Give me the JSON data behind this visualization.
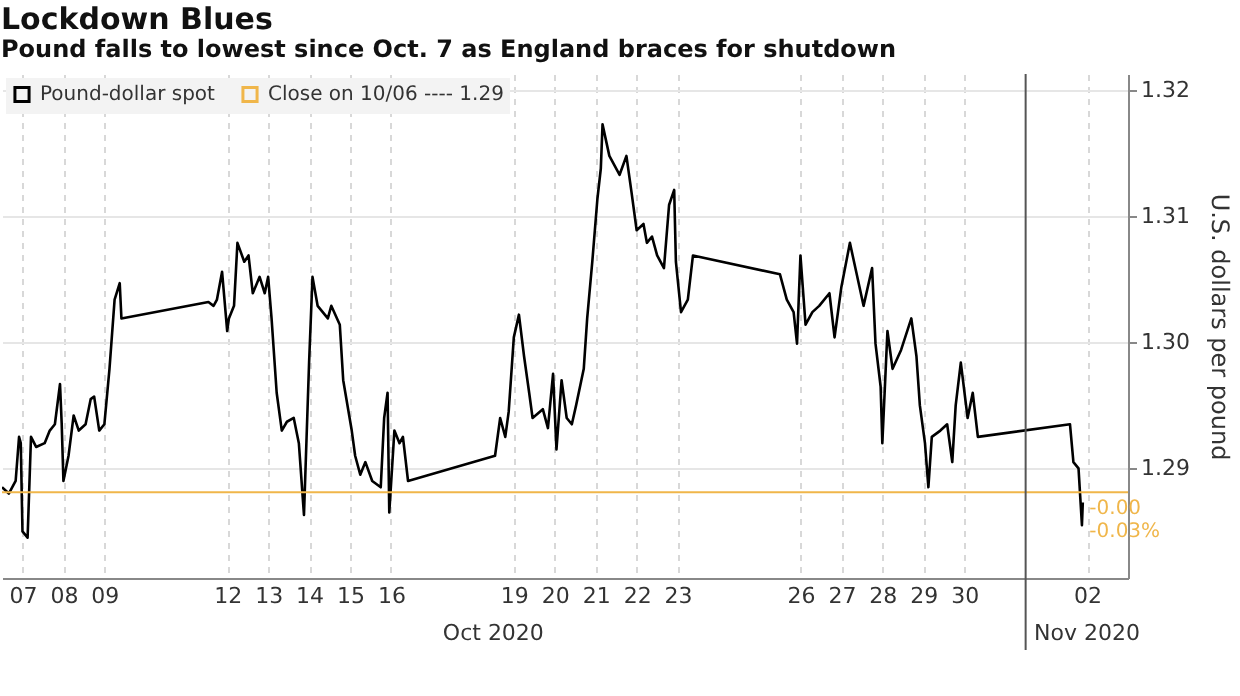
{
  "chart_data": {
    "type": "line",
    "title": "Lockdown Blues",
    "subtitle": "Pound falls to lowest since Oct. 7 as England braces for shutdown",
    "ylabel": "U.S. dollars per pound",
    "x": [
      "2020-10-07T00:00",
      "2020-10-07T04:00",
      "2020-10-07T08:00",
      "2020-10-07T10:00",
      "2020-10-07T11:00",
      "2020-10-07T12:00",
      "2020-10-07T15:00",
      "2020-10-07T17:00",
      "2020-10-07T20:00",
      "2020-10-08T01:00",
      "2020-10-08T04:00",
      "2020-10-08T07:00",
      "2020-10-08T10:00",
      "2020-10-08T11:00",
      "2020-10-08T12:00",
      "2020-10-08T15:00",
      "2020-10-08T18:00",
      "2020-10-08T21:00",
      "2020-10-09T01:00",
      "2020-10-09T04:00",
      "2020-10-09T06:00",
      "2020-10-09T09:00",
      "2020-10-09T12:00",
      "2020-10-09T15:00",
      "2020-10-09T18:00",
      "2020-10-09T21:00",
      "2020-10-09T22:00",
      "2020-10-12T01:00",
      "2020-10-12T04:00",
      "2020-10-12T06:00",
      "2020-10-12T09:00",
      "2020-10-12T12:00",
      "2020-10-12T13:00",
      "2020-10-12T16:00",
      "2020-10-12T18:00",
      "2020-10-12T22:00",
      "2020-10-13T00:30",
      "2020-10-13T03:00",
      "2020-10-13T07:00",
      "2020-10-13T10:00",
      "2020-10-13T12:00",
      "2020-10-13T14:00",
      "2020-10-13T17:00",
      "2020-10-13T20:00",
      "2020-10-13T23:00",
      "2020-10-14T03:00",
      "2020-10-14T06:00",
      "2020-10-14T09:00",
      "2020-10-14T12:00",
      "2020-10-14T14:00",
      "2020-10-14T17:00",
      "2020-10-14T23:00",
      "2020-10-15T01:00",
      "2020-10-15T06:00",
      "2020-10-15T08:00",
      "2020-10-15T13:00",
      "2020-10-15T15:00",
      "2020-10-15T18:00",
      "2020-10-15T21:00",
      "2020-10-16T01:00",
      "2020-10-16T06:00",
      "2020-10-16T08:00",
      "2020-10-16T10:00",
      "2020-10-16T11:00",
      "2020-10-16T14:00",
      "2020-10-16T17:00",
      "2020-10-16T19:00",
      "2020-10-16T22:00",
      "2020-10-19T01:00",
      "2020-10-19T04:00",
      "2020-10-19T07:00",
      "2020-10-19T09:00",
      "2020-10-19T12:00",
      "2020-10-19T15:00",
      "2020-10-19T18:00",
      "2020-10-19T21:00",
      "2020-10-19T23:00",
      "2020-10-20T05:00",
      "2020-10-20T08:00",
      "2020-10-20T11:00",
      "2020-10-20T13:00",
      "2020-10-20T16:00",
      "2020-10-20T19:00",
      "2020-10-20T22:00",
      "2020-10-21T00:30",
      "2020-10-21T05:00",
      "2020-10-21T07:00",
      "2020-10-21T10:00",
      "2020-10-21T13:00",
      "2020-10-21T15:00",
      "2020-10-21T16:00",
      "2020-10-21T20:00",
      "2020-10-22T02:00",
      "2020-10-22T06:00",
      "2020-10-22T09:00",
      "2020-10-22T12:00",
      "2020-10-22T16:00",
      "2020-10-22T18:00",
      "2020-10-22T21:00",
      "2020-10-23T00:00",
      "2020-10-23T04:00",
      "2020-10-23T07:00",
      "2020-10-23T10:00",
      "2020-10-23T11:00",
      "2020-10-23T14:00",
      "2020-10-23T18:00",
      "2020-10-23T21:00",
      "2020-10-26T00:00",
      "2020-10-26T04:00",
      "2020-10-26T08:00",
      "2020-10-26T10:00",
      "2020-10-26T12:00",
      "2020-10-26T15:00",
      "2020-10-26T19:00",
      "2020-10-26T23:00",
      "2020-10-27T05:00",
      "2020-10-27T08:00",
      "2020-10-27T12:00",
      "2020-10-27T17:00",
      "2020-10-27T21:00",
      "2020-10-28T01:00",
      "2020-10-28T06:00",
      "2020-10-28T08:00",
      "2020-10-28T11:00",
      "2020-10-28T12:00",
      "2020-10-28T15:00",
      "2020-10-28T18:00",
      "2020-10-28T23:00",
      "2020-10-29T05:00",
      "2020-10-29T08:00",
      "2020-10-29T10:00",
      "2020-10-29T13:00",
      "2020-10-29T15:00",
      "2020-10-29T17:00",
      "2020-10-29T22:00",
      "2020-10-30T02:00",
      "2020-10-30T05:00",
      "2020-10-30T07:00",
      "2020-10-30T10:00",
      "2020-10-30T14:00",
      "2020-10-30T17:00",
      "2020-10-30T20:00",
      "2020-11-02T02:00",
      "2020-11-02T04:00",
      "2020-11-02T07:00",
      "2020-11-02T09:00",
      "2020-11-02T09:30"
    ],
    "series": [
      {
        "name": "Pound-dollar spot",
        "color": "#000000",
        "values": [
          1.2885,
          1.288,
          1.289,
          1.2925,
          1.292,
          1.285,
          1.2845,
          1.2925,
          1.2917,
          1.292,
          1.293,
          1.2935,
          1.2967,
          1.2935,
          1.289,
          1.291,
          1.2942,
          1.293,
          1.2935,
          1.2955,
          1.2957,
          1.293,
          1.2935,
          1.2979,
          1.3034,
          1.3047,
          1.3019,
          1.3032,
          1.3029,
          1.3034,
          1.3056,
          1.3009,
          1.3019,
          1.3029,
          1.3079,
          1.3064,
          1.3069,
          1.3039,
          1.3052,
          1.3039,
          1.3052,
          1.3019,
          1.296,
          1.293,
          1.2937,
          1.294,
          1.292,
          1.2863,
          1.2984,
          1.3052,
          1.3029,
          1.3019,
          1.3029,
          1.3014,
          1.297,
          1.293,
          1.291,
          1.2895,
          1.2905,
          1.289,
          1.2885,
          1.294,
          1.296,
          1.2865,
          1.293,
          1.292,
          1.2925,
          1.289,
          1.291,
          1.294,
          1.2925,
          1.2945,
          1.3004,
          1.3022,
          1.2989,
          1.296,
          1.294,
          1.2947,
          1.2932,
          1.2975,
          1.2915,
          1.297,
          1.294,
          1.2935,
          1.295,
          1.2979,
          1.3019,
          1.3064,
          1.3114,
          1.3138,
          1.3173,
          1.3148,
          1.3133,
          1.3148,
          1.3119,
          1.3089,
          1.3094,
          1.3079,
          1.3084,
          1.3069,
          1.3059,
          1.3109,
          1.3121,
          1.3064,
          1.3024,
          1.3034,
          1.3069,
          1.3054,
          1.3034,
          1.3024,
          1.2999,
          1.3069,
          1.3014,
          1.3024,
          1.3029,
          1.3039,
          1.3004,
          1.3044,
          1.3079,
          1.3054,
          1.3029,
          1.3059,
          1.2999,
          1.2965,
          1.292,
          1.3009,
          1.2979,
          1.2994,
          1.3019,
          1.2989,
          1.295,
          1.292,
          1.2885,
          1.2925,
          1.293,
          1.2935,
          1.2905,
          1.295,
          1.2984,
          1.294,
          1.296,
          1.2925,
          1.2935,
          1.2905,
          1.29,
          1.2855,
          1.2873
        ]
      }
    ],
    "xlim": [
      "2020-10-07T00:00",
      "2020-11-03T12:00"
    ],
    "xticks": [
      {
        "value": "2020-10-07T12:00",
        "label": "07"
      },
      {
        "value": "2020-10-08T12:00",
        "label": "08"
      },
      {
        "value": "2020-10-09T12:00",
        "label": "09"
      },
      {
        "value": "2020-10-12T12:00",
        "label": "12"
      },
      {
        "value": "2020-10-13T12:00",
        "label": "13"
      },
      {
        "value": "2020-10-14T12:00",
        "label": "14"
      },
      {
        "value": "2020-10-15T12:00",
        "label": "15"
      },
      {
        "value": "2020-10-16T12:00",
        "label": "16"
      },
      {
        "value": "2020-10-19T12:00",
        "label": "19"
      },
      {
        "value": "2020-10-20T12:00",
        "label": "20"
      },
      {
        "value": "2020-10-21T12:00",
        "label": "21"
      },
      {
        "value": "2020-10-22T12:00",
        "label": "22"
      },
      {
        "value": "2020-10-23T12:00",
        "label": "23"
      },
      {
        "value": "2020-10-26T12:00",
        "label": "26"
      },
      {
        "value": "2020-10-27T12:00",
        "label": "27"
      },
      {
        "value": "2020-10-28T12:00",
        "label": "28"
      },
      {
        "value": "2020-10-29T12:00",
        "label": "29"
      },
      {
        "value": "2020-10-30T12:00",
        "label": "30"
      },
      {
        "value": "2020-11-02T12:00",
        "label": "02"
      }
    ],
    "ylim": [
      1.2813,
      1.3213
    ],
    "yticks": [
      {
        "value": 1.29,
        "label": "1.29"
      },
      {
        "value": 1.3,
        "label": "1.30"
      },
      {
        "value": 1.31,
        "label": "1.31"
      },
      {
        "value": 1.32,
        "label": "1.32"
      }
    ],
    "ref_lines": [
      {
        "axis": "y",
        "value": 1.2881,
        "label": "Close on 10/06 ---- 1.29",
        "color": "#f0b64a"
      },
      {
        "axis": "x",
        "value": "2020-11-01T00:00",
        "color": "#555555"
      }
    ],
    "annotations": [
      {
        "text": "-0.00",
        "x": "2020-11-02T11:00",
        "y": 1.2873
      },
      {
        "text": "-0.03%",
        "x": "2020-11-02T11:00",
        "y": 1.2855
      },
      "Oct 2020",
      "Nov 2020"
    ],
    "grid": true,
    "legend": "top left"
  }
}
